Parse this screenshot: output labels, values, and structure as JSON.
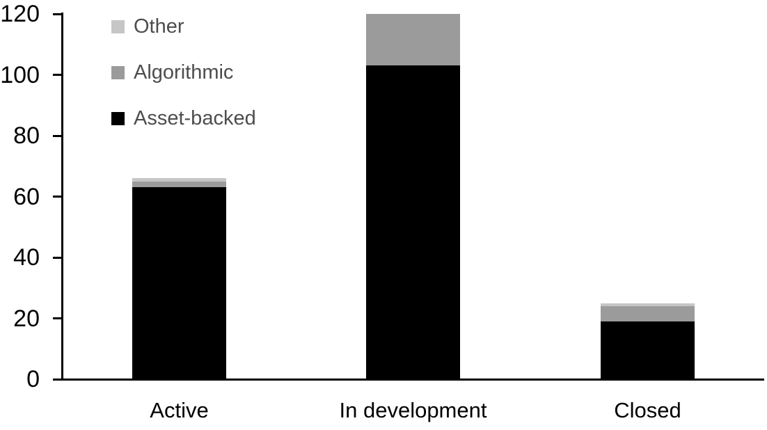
{
  "chart_data": {
    "type": "bar",
    "stacked": true,
    "title": "",
    "xlabel": "",
    "ylabel": "",
    "categories": [
      "Active",
      "In development",
      "Closed"
    ],
    "series": [
      {
        "name": "Asset-backed",
        "color": "#000000",
        "values": [
          63,
          103,
          19
        ]
      },
      {
        "name": "Algorithmic",
        "color": "#9b9b9b",
        "values": [
          2,
          17,
          5
        ]
      },
      {
        "name": "Other",
        "color": "#c6c6c6",
        "values": [
          1,
          0,
          1
        ]
      }
    ],
    "totals": [
      66,
      120,
      25
    ],
    "ylim": [
      0,
      120
    ],
    "yticks": [
      0,
      20,
      40,
      60,
      80,
      100,
      120
    ],
    "grid": false,
    "legend_position": "top-left",
    "legend_order": [
      "Other",
      "Algorithmic",
      "Asset-backed"
    ],
    "axis_color": "#000000",
    "tick_label_color": "#000000",
    "legend_text_color": "#4d4d4d"
  }
}
